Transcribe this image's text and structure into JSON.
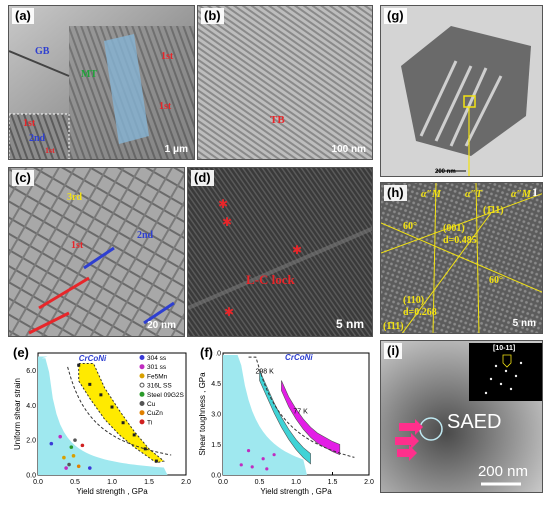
{
  "panels": {
    "a": {
      "label": "(a)",
      "annotations": [
        "GB",
        "MT",
        "1st",
        "1st",
        "1st",
        "2nd",
        "1st"
      ],
      "scale": "1 μm"
    },
    "b": {
      "label": "(b)",
      "annotations": [
        "TB"
      ],
      "scale": "100 nm"
    },
    "c": {
      "label": "(c)",
      "annotations": [
        "3rd",
        "1st",
        "2nd"
      ],
      "scale": "20 nm"
    },
    "d": {
      "label": "(d)",
      "annotations": [
        "L-C lock"
      ],
      "scale": "5 nm"
    },
    "g": {
      "label": "(g)",
      "scale": "200 nm"
    },
    "h": {
      "label": "(h)",
      "corner": "1",
      "phases": [
        "α″M",
        "α″T",
        "α″M"
      ],
      "planes": [
        "(001)",
        "d=0.485",
        "(1̄11)",
        "(110)",
        "d=0.268",
        "(1̄11)"
      ],
      "angles": [
        "60°",
        "60°"
      ],
      "scale": "5 nm"
    },
    "i": {
      "label": "(i)",
      "inset": "[10-11]",
      "saed": "SAED",
      "scale": "200 nm"
    },
    "e": {
      "label": "(e)"
    },
    "f": {
      "label": "(f)"
    }
  },
  "colors": {
    "annotation_red": "#e8262a",
    "annotation_blue": "#2e3fd1",
    "annotation_green": "#1fa33a",
    "annotation_yellow": "#f3e313",
    "region_cyan": "#9fe8ef",
    "band_yellow": "#ffea00",
    "band_magenta": "#e31ee6",
    "band_cyan": "#3fd3d6"
  },
  "chart_data": [
    {
      "type": "scatter",
      "panel": "e",
      "xlabel": "Yield strength , GPa",
      "ylabel": "Uniform shear strain",
      "xlim": [
        0.0,
        2.0
      ],
      "ylim": [
        0.0,
        7.0
      ],
      "xticks": [
        "0.0",
        "0.5",
        "1.0",
        "1.5",
        "2.0"
      ],
      "yticks": [
        "0.0",
        "2.0",
        "4.0",
        "6.0"
      ],
      "highlight_label": "CrCoNi",
      "legend": [
        {
          "name": "304 ss",
          "marker": "triangle",
          "color": "#3a3ad8"
        },
        {
          "name": "301 ss",
          "marker": "triangle-down",
          "color": "#c02cc0"
        },
        {
          "name": "Fe5Mn",
          "marker": "circle",
          "color": "#d8a000"
        },
        {
          "name": "316L SS",
          "marker": "circle-open",
          "color": "#555555"
        },
        {
          "name": "Steel 09G2S",
          "marker": "diamond",
          "color": "#2a9a2a"
        },
        {
          "name": "Cu",
          "marker": "plus",
          "color": "#555555"
        },
        {
          "name": "CuZn",
          "marker": "square",
          "color": "#e08000"
        },
        {
          "name": "Ti",
          "marker": "star",
          "color": "#d02020"
        }
      ],
      "crconi_points": {
        "x": [
          0.55,
          0.7,
          0.85,
          1.0,
          1.15,
          1.3,
          1.45,
          1.6
        ],
        "y": [
          6.3,
          5.2,
          4.6,
          3.9,
          3.0,
          2.3,
          1.5,
          0.8
        ]
      },
      "other_points": {
        "x": [
          0.18,
          0.3,
          0.35,
          0.42,
          0.45,
          0.5,
          0.55,
          0.6,
          0.7,
          0.38,
          0.48
        ],
        "y": [
          1.8,
          2.2,
          1.0,
          0.6,
          1.6,
          2.0,
          0.5,
          1.7,
          0.4,
          0.4,
          1.1
        ]
      }
    },
    {
      "type": "line",
      "panel": "f",
      "xlabel": "Yield strength , GPa",
      "ylabel": "Shear toughness , GPa",
      "xlim": [
        0.0,
        2.0
      ],
      "ylim": [
        0.0,
        6.0
      ],
      "xticks": [
        "0.0",
        "0.5",
        "1.0",
        "1.5",
        "2.0"
      ],
      "yticks": [
        "0.0",
        "1.5",
        "3.0",
        "4.5",
        "6.0"
      ],
      "highlight_label": "CrCoNi",
      "series": [
        {
          "name": "298 K",
          "x": [
            0.5,
            0.6,
            0.7,
            0.8,
            0.9,
            1.0,
            1.1,
            1.2
          ],
          "y": [
            4.9,
            4.1,
            3.3,
            2.6,
            2.0,
            1.5,
            1.1,
            0.8
          ]
        },
        {
          "name": "77 K",
          "x": [
            0.8,
            0.9,
            1.0,
            1.1,
            1.2,
            1.3,
            1.4,
            1.5,
            1.6
          ],
          "y": [
            4.4,
            3.6,
            3.0,
            2.5,
            2.1,
            1.8,
            1.6,
            1.4,
            1.25
          ]
        }
      ]
    }
  ]
}
